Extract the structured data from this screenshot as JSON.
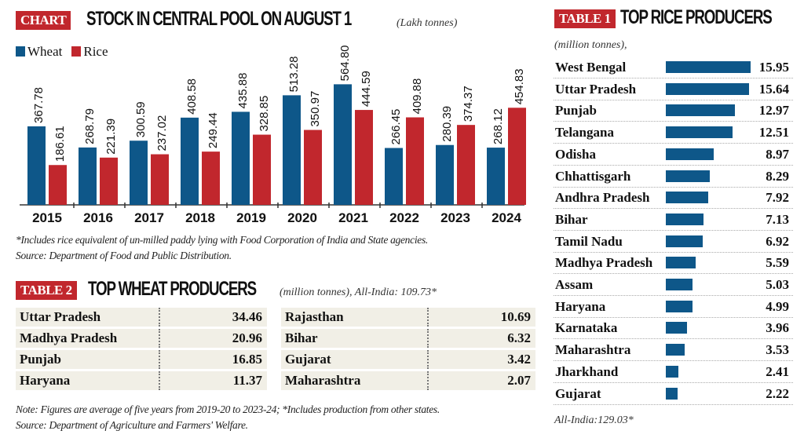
{
  "chart_section": {
    "tag": "CHART",
    "title": "STOCK IN CENTRAL POOL ON AUGUST 1",
    "unit": "(Lakh tonnes)",
    "note": "*Includes rice equivalent of un-milled paddy lying with Food Corporation of India and State agencies.",
    "source": "Source: Department of Food and Public Distribution."
  },
  "chart_data": {
    "type": "bar",
    "title": "STOCK IN CENTRAL POOL ON AUGUST 1",
    "ylabel": "Lakh tonnes",
    "categories": [
      "2015",
      "2016",
      "2017",
      "2018",
      "2019",
      "2020",
      "2021",
      "2022",
      "2023",
      "2024"
    ],
    "series": [
      {
        "name": "Wheat",
        "color": "#0e5789",
        "values": [
          367.78,
          268.79,
          300.59,
          408.58,
          435.88,
          513.28,
          564.8,
          266.45,
          280.39,
          268.12
        ],
        "labels": [
          "367.78",
          "268.79",
          "300.59",
          "408.58",
          "435.88",
          "513.28",
          "564.80",
          "266.45",
          "280.39",
          "268.12"
        ]
      },
      {
        "name": "Rice",
        "color": "#c1272d",
        "values": [
          186.61,
          221.39,
          237.02,
          249.44,
          328.85,
          350.97,
          444.59,
          409.88,
          374.37,
          454.83
        ],
        "labels": [
          "186.61",
          "221.39",
          "237.02",
          "249.44",
          "328.85",
          "350.97",
          "444.59",
          "409.88",
          "374.37",
          "454.83"
        ]
      }
    ],
    "ylim": [
      0,
      600
    ],
    "grid": false,
    "legend": "top-left"
  },
  "table2": {
    "tag": "TABLE 2",
    "title": "TOP WHEAT PRODUCERS",
    "unit": "(million tonnes), All-India: 109.73*",
    "rows": [
      {
        "state": "Uttar Pradesh",
        "value": "34.46"
      },
      {
        "state": "Madhya Pradesh",
        "value": "20.96"
      },
      {
        "state": "Punjab",
        "value": "16.85"
      },
      {
        "state": "Haryana",
        "value": "11.37"
      },
      {
        "state": "Rajasthan",
        "value": "10.69"
      },
      {
        "state": "Bihar",
        "value": "6.32"
      },
      {
        "state": "Gujarat",
        "value": "3.42"
      },
      {
        "state": "Maharashtra",
        "value": "2.07"
      }
    ],
    "note": "Note: Figures are average of five years from 2019-20 to 2023-24; *Includes production from other states.",
    "source": "Source: Department of Agriculture and Farmers' Welfare."
  },
  "table1": {
    "tag": "TABLE 1",
    "title": "TOP RICE PRODUCERS",
    "unit": "(million tonnes),",
    "total": "All-India:129.03*",
    "bar_color": "#0e5789",
    "rows": [
      {
        "state": "West Bengal",
        "value": 15.95,
        "label": "15.95"
      },
      {
        "state": "Uttar Pradesh",
        "value": 15.64,
        "label": "15.64"
      },
      {
        "state": "Punjab",
        "value": 12.97,
        "label": "12.97"
      },
      {
        "state": "Telangana",
        "value": 12.51,
        "label": "12.51"
      },
      {
        "state": "Odisha",
        "value": 8.97,
        "label": "8.97"
      },
      {
        "state": "Chhattisgarh",
        "value": 8.29,
        "label": "8.29"
      },
      {
        "state": "Andhra Pradesh",
        "value": 7.92,
        "label": "7.92"
      },
      {
        "state": "Bihar",
        "value": 7.13,
        "label": "7.13"
      },
      {
        "state": "Tamil Nadu",
        "value": 6.92,
        "label": "6.92"
      },
      {
        "state": "Madhya Pradesh",
        "value": 5.59,
        "label": "5.59"
      },
      {
        "state": "Assam",
        "value": 5.03,
        "label": "5.03"
      },
      {
        "state": "Haryana",
        "value": 4.99,
        "label": "4.99"
      },
      {
        "state": "Karnataka",
        "value": 3.96,
        "label": "3.96"
      },
      {
        "state": "Maharashtra",
        "value": 3.53,
        "label": "3.53"
      },
      {
        "state": "Jharkhand",
        "value": 2.41,
        "label": "2.41"
      },
      {
        "state": "Gujarat",
        "value": 2.22,
        "label": "2.22"
      }
    ]
  }
}
